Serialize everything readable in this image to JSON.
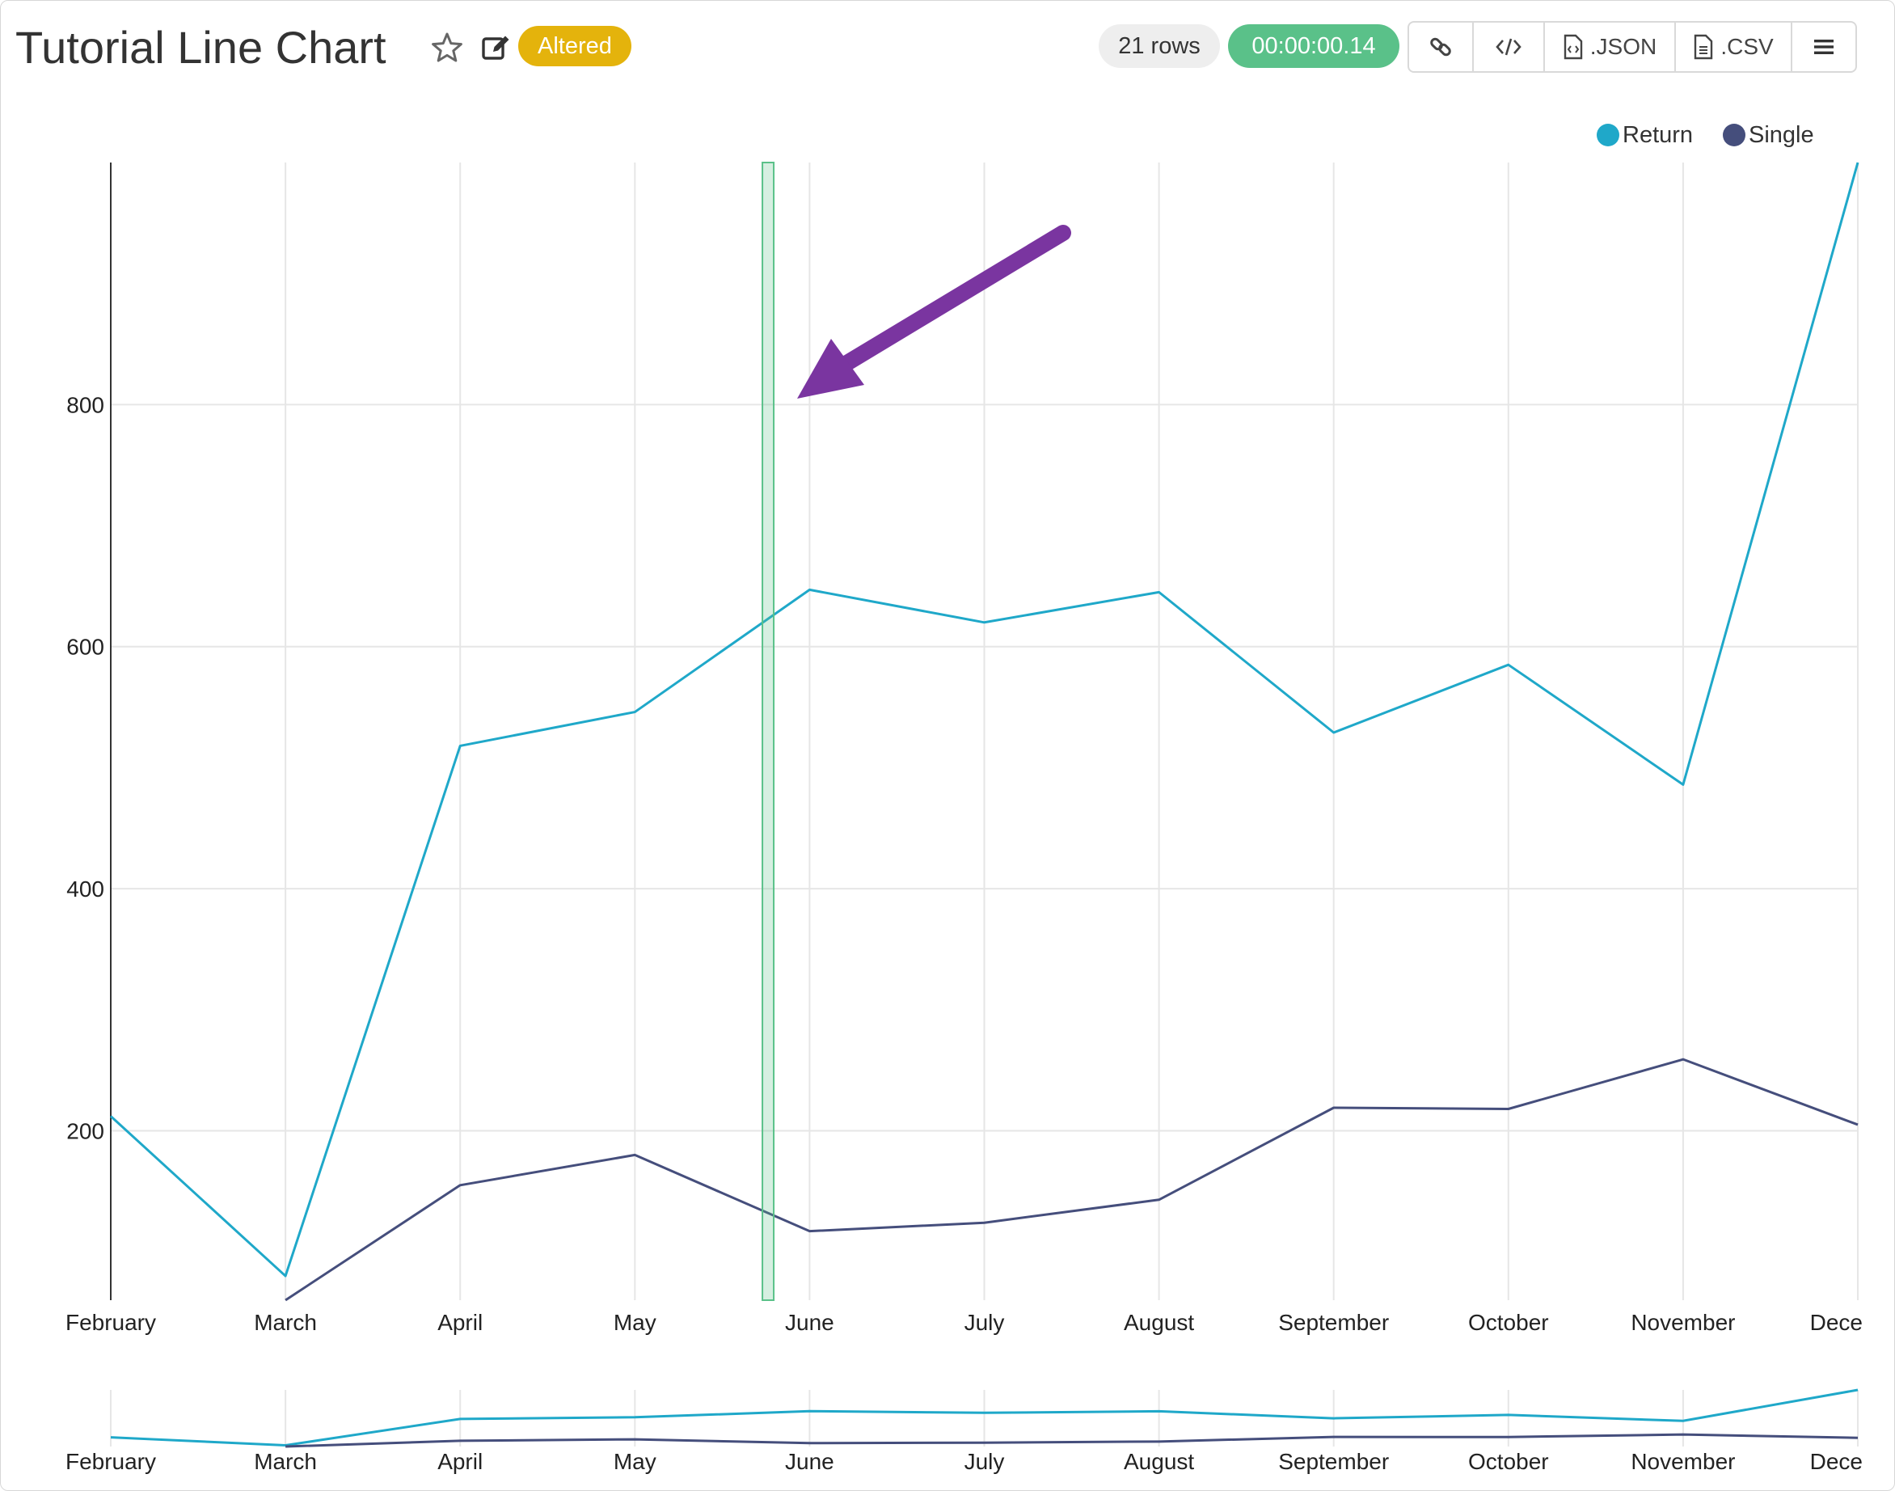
{
  "header": {
    "title": "Tutorial Line Chart",
    "status_badge": "Altered",
    "row_count": "21 rows",
    "timer": "00:00:00.14",
    "json_label": ".JSON",
    "csv_label": ".CSV",
    "icons": [
      "star-icon",
      "edit-icon",
      "link-icon",
      "code-icon",
      "file-code-icon",
      "file-text-icon",
      "menu-icon"
    ]
  },
  "legend": [
    {
      "label": "Return",
      "color": "#1fa8c9"
    },
    {
      "label": "Single",
      "color": "#454e7c"
    }
  ],
  "chart_data": {
    "type": "line",
    "categories": [
      "February",
      "March",
      "April",
      "May",
      "June",
      "July",
      "August",
      "September",
      "October",
      "November",
      "Dece"
    ],
    "series": [
      {
        "name": "Return",
        "color": "#1fa8c9",
        "values": [
          212,
          80,
          518,
          546,
          647,
          620,
          645,
          529,
          585,
          486,
          1000
        ]
      },
      {
        "name": "Single",
        "color": "#454e7c",
        "values": [
          null,
          60,
          155,
          180,
          117,
          124,
          143,
          219,
          218,
          259,
          205
        ]
      }
    ],
    "yticks": [
      200,
      400,
      600,
      800
    ],
    "ylim": [
      60,
      1000
    ],
    "grid": true,
    "legend_position": "top-right",
    "brush_selection_between": [
      "May",
      "June"
    ],
    "mini_chart": {
      "xlabels": [
        "February",
        "March",
        "April",
        "May",
        "June",
        "July",
        "August",
        "September",
        "October",
        "November",
        "Dece"
      ]
    }
  },
  "annotation": {
    "arrow_color": "#7a35a0",
    "highlight_color": "#5ac189"
  }
}
